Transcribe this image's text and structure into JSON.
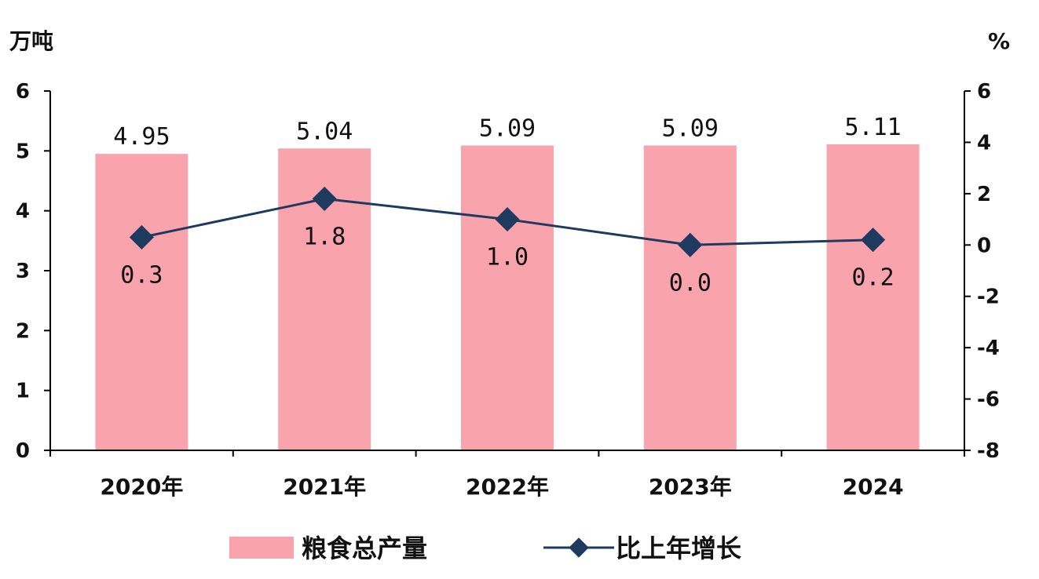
{
  "chart_data": {
    "type": "bar+line",
    "categories": [
      "2020年",
      "2021年",
      "2022年",
      "2023年",
      "2024"
    ],
    "bar_series": {
      "name": "粮食总产量",
      "values": [
        4.95,
        5.04,
        5.09,
        5.09,
        5.11
      ],
      "labels": [
        "4.95",
        "5.04",
        "5.09",
        "5.09",
        "5.11"
      ],
      "color": "#f9a3ad"
    },
    "line_series": {
      "name": "比上年增长",
      "values": [
        0.3,
        1.8,
        1.0,
        0.0,
        0.2
      ],
      "labels": [
        "0.3",
        "1.8",
        "1.0",
        "0.0",
        "0.2"
      ],
      "color": "#1f3a5f"
    },
    "y_left": {
      "unit": "万吨",
      "ylim": [
        0,
        6
      ],
      "ticks": [
        "0",
        "1",
        "2",
        "3",
        "4",
        "5",
        "6"
      ]
    },
    "y_right": {
      "unit": "%",
      "ylim": [
        -8,
        6
      ],
      "ticks": [
        "-8",
        "-6",
        "-4",
        "-2",
        "0",
        "2",
        "4",
        "6"
      ]
    },
    "grid": false,
    "legend_position": "bottom"
  }
}
